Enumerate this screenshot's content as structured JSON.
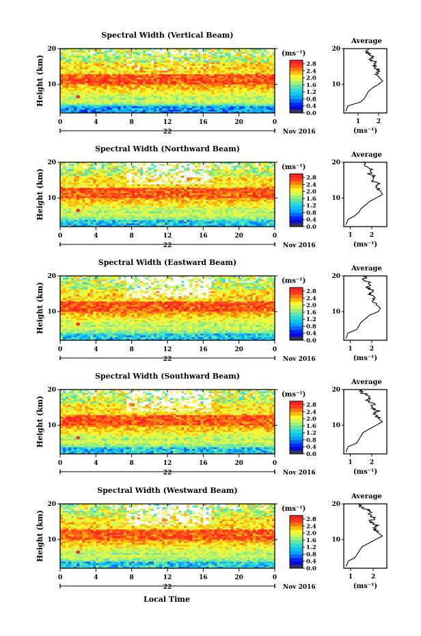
{
  "figure": {
    "xlabel": "Local Time",
    "ylabel": "Height (km)",
    "date_label": "Nov 2016",
    "day_label": "22",
    "colorbar_unit": "(ms⁻¹)",
    "profile_title": "Average",
    "profile_xlabel": "(ms⁻¹)"
  },
  "chart_data": [
    {
      "type": "heatmap",
      "title": "Spectral Width (Vertical Beam)",
      "beam": "vertical",
      "x_ticks": [
        "0",
        "4",
        "8",
        "12",
        "16",
        "20",
        "0"
      ],
      "xlim": [
        0,
        24
      ],
      "y_ticks": [
        "20",
        "10"
      ],
      "ylim": [
        2,
        20
      ],
      "colorbar": {
        "ticks": [
          "2.8",
          "2.4",
          "2.0",
          "1.6",
          "1.2",
          "0.8",
          "0.4",
          "0.0"
        ],
        "range": [
          0,
          3.0
        ]
      },
      "profile": {
        "x_ticks": [
          "1",
          "2"
        ],
        "xlim": [
          0.3,
          2.4
        ],
        "heights": [
          2.5,
          4,
          5,
          6,
          7,
          8,
          9,
          10,
          11,
          12,
          13,
          14,
          15,
          16,
          17,
          18,
          19,
          20
        ],
        "values": [
          0.4,
          0.5,
          1.1,
          1.3,
          1.4,
          1.5,
          1.7,
          2.0,
          2.2,
          2.0,
          1.9,
          2.0,
          1.8,
          1.9,
          1.6,
          1.7,
          1.4,
          1.5
        ]
      }
    },
    {
      "type": "heatmap",
      "title": "Spectral Width (Northward Beam)",
      "beam": "northward",
      "x_ticks": [
        "0",
        "4",
        "8",
        "12",
        "16",
        "20",
        "0"
      ],
      "xlim": [
        0,
        24
      ],
      "y_ticks": [
        "20",
        "10"
      ],
      "ylim": [
        2,
        20
      ],
      "colorbar": {
        "ticks": [
          "2.8",
          "2.4",
          "2.0",
          "1.6",
          "1.2",
          "0.8",
          "0.4",
          "0.0"
        ],
        "range": [
          0,
          3.0
        ]
      },
      "profile": {
        "x_ticks": [
          "1",
          "2"
        ],
        "xlim": [
          0.7,
          2.7
        ],
        "heights": [
          2.5,
          4,
          5,
          6,
          7,
          8,
          9,
          10,
          11,
          12,
          13,
          14,
          15,
          16,
          17,
          18,
          19,
          20
        ],
        "values": [
          0.8,
          0.9,
          1.2,
          1.4,
          1.5,
          1.7,
          1.9,
          2.2,
          2.5,
          2.4,
          2.2,
          2.3,
          2.0,
          2.1,
          1.9,
          2.0,
          1.7,
          1.6
        ]
      }
    },
    {
      "type": "heatmap",
      "title": "Spectral Width (Eastward Beam)",
      "beam": "eastward",
      "x_ticks": [
        "0",
        "4",
        "8",
        "12",
        "16",
        "20",
        "0"
      ],
      "xlim": [
        0,
        24
      ],
      "y_ticks": [
        "20",
        "10"
      ],
      "ylim": [
        2,
        20
      ],
      "colorbar": {
        "ticks": [
          "2.8",
          "2.4",
          "2.0",
          "1.6",
          "1.2",
          "0.8",
          "0.4",
          "0.0"
        ],
        "range": [
          0,
          3.0
        ]
      },
      "profile": {
        "x_ticks": [
          "1",
          "2"
        ],
        "xlim": [
          0.7,
          2.7
        ],
        "heights": [
          2.5,
          4,
          5,
          6,
          7,
          8,
          9,
          10,
          11,
          12,
          13,
          14,
          15,
          16,
          17,
          18,
          19,
          20
        ],
        "values": [
          0.8,
          0.9,
          1.3,
          1.4,
          1.5,
          1.7,
          1.9,
          2.3,
          2.4,
          2.2,
          2.1,
          2.2,
          1.9,
          2.0,
          1.8,
          1.9,
          1.6,
          1.8
        ]
      }
    },
    {
      "type": "heatmap",
      "title": "Spectral Width (Southward Beam)",
      "beam": "southward",
      "x_ticks": [
        "0",
        "4",
        "8",
        "12",
        "16",
        "20",
        "0"
      ],
      "xlim": [
        0,
        24
      ],
      "y_ticks": [
        "20",
        "10"
      ],
      "ylim": [
        2,
        20
      ],
      "colorbar": {
        "ticks": [
          "2.8",
          "2.4",
          "2.0",
          "1.6",
          "1.2",
          "0.8",
          "0.4",
          "0.0"
        ],
        "range": [
          0,
          3.0
        ]
      },
      "profile": {
        "x_ticks": [
          "1",
          "2"
        ],
        "xlim": [
          0.7,
          2.7
        ],
        "heights": [
          2.5,
          4,
          5,
          6,
          7,
          8,
          9,
          10,
          11,
          12,
          13,
          14,
          15,
          16,
          17,
          18,
          19,
          20
        ],
        "values": [
          0.8,
          0.9,
          1.3,
          1.4,
          1.5,
          1.6,
          1.9,
          2.2,
          2.5,
          2.3,
          2.1,
          2.3,
          2.0,
          2.1,
          1.8,
          1.9,
          1.6,
          1.5
        ]
      }
    },
    {
      "type": "heatmap",
      "title": "Spectral Width (Westward Beam)",
      "beam": "westward",
      "x_ticks": [
        "0",
        "4",
        "8",
        "12",
        "16",
        "20",
        "0"
      ],
      "xlim": [
        0,
        24
      ],
      "y_ticks": [
        "20",
        "10"
      ],
      "ylim": [
        2,
        20
      ],
      "colorbar": {
        "ticks": [
          "2.8",
          "2.4",
          "2.0",
          "1.6",
          "1.2",
          "0.8",
          "0.4",
          "0.0"
        ],
        "range": [
          0,
          3.0
        ]
      },
      "profile": {
        "x_ticks": [
          "1",
          "2"
        ],
        "xlim": [
          0.7,
          2.6
        ],
        "heights": [
          2.5,
          4,
          5,
          6,
          7,
          8,
          9,
          10,
          11,
          12,
          13,
          14,
          15,
          16,
          17,
          18,
          19,
          20
        ],
        "values": [
          0.8,
          0.9,
          1.2,
          1.3,
          1.4,
          1.5,
          1.8,
          2.1,
          2.4,
          2.2,
          2.0,
          2.2,
          1.9,
          2.0,
          1.8,
          1.9,
          1.5,
          1.4
        ]
      }
    }
  ]
}
